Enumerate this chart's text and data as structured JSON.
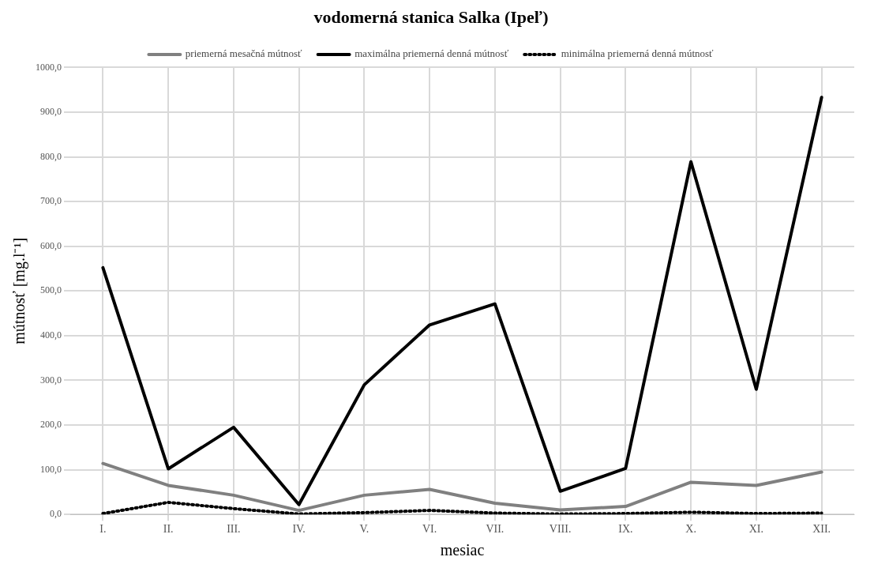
{
  "chart_data": {
    "type": "line",
    "title": "vodomerná stanica Salka (Ipeľ)",
    "xlabel": "mesiac",
    "ylabel": "mútnosť [mg.l⁻¹]",
    "categories": [
      "I.",
      "II.",
      "III.",
      "IV.",
      "V.",
      "VI.",
      "VII.",
      "VIII.",
      "IX.",
      "X.",
      "XI.",
      "XII."
    ],
    "series": [
      {
        "name": "priemerná mesačná mútnosť",
        "color": "#808080",
        "line_style": "solid",
        "values": [
          114,
          65,
          43,
          9,
          43,
          56,
          25,
          10,
          18,
          72,
          65,
          95
        ]
      },
      {
        "name": "maximálna priemerná denná mútnosť",
        "color": "#000000",
        "line_style": "solid",
        "values": [
          552,
          102,
          195,
          22,
          290,
          424,
          471,
          52,
          103,
          789,
          280,
          933
        ]
      },
      {
        "name": "minimálna priemerná denná mútnosť",
        "color": "#000000",
        "line_style": "dotted",
        "values": [
          2,
          27,
          13,
          1,
          4,
          9,
          3,
          1,
          2,
          5,
          2,
          3
        ]
      }
    ],
    "ylim": [
      0,
      1000
    ],
    "yticks": [
      {
        "value": 0,
        "label": "0,0"
      },
      {
        "value": 100,
        "label": "100,0"
      },
      {
        "value": 200,
        "label": "200,0"
      },
      {
        "value": 300,
        "label": "300,0"
      },
      {
        "value": 400,
        "label": "400,0"
      },
      {
        "value": 500,
        "label": "500,0"
      },
      {
        "value": 600,
        "label": "600,0"
      },
      {
        "value": 700,
        "label": "700,0"
      },
      {
        "value": 800,
        "label": "800,0"
      },
      {
        "value": 900,
        "label": "900,0"
      },
      {
        "value": 1000,
        "label": "1000,0"
      }
    ],
    "grid": true,
    "legend": "top",
    "marker": "none"
  }
}
